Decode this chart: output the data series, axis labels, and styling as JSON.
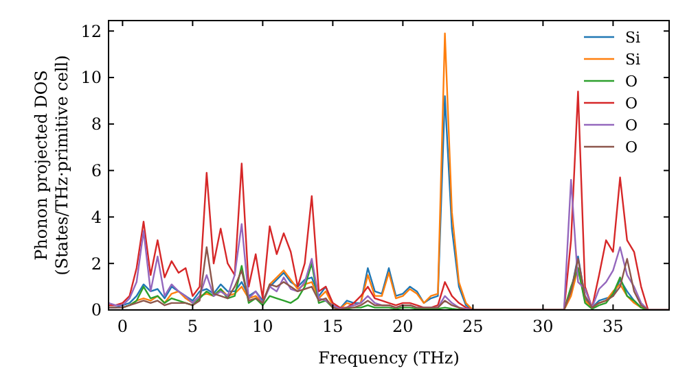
{
  "chart_data": {
    "type": "line",
    "xlabel": "Frequency (THz)",
    "ylabel": "Phonon projected DOS\n(States/THz·primitive cell)",
    "x": [
      -1,
      -0.5,
      0,
      0.5,
      1,
      1.5,
      2,
      2.5,
      3,
      3.5,
      4,
      4.5,
      5,
      5.5,
      6,
      6.5,
      7,
      7.5,
      8,
      8.5,
      9,
      9.5,
      10,
      10.5,
      11,
      11.5,
      12,
      12.5,
      13,
      13.5,
      14,
      14.5,
      15,
      15.5,
      16,
      16.5,
      17,
      17.5,
      18,
      18.5,
      19,
      19.5,
      20,
      20.5,
      21,
      21.5,
      22,
      22.5,
      23,
      23.5,
      24,
      24.5,
      25,
      26,
      28,
      30,
      31.5,
      32,
      32.5,
      33,
      33.5,
      34,
      34.5,
      35,
      35.5,
      36,
      36.5,
      37,
      37.5,
      38,
      39
    ],
    "series": [
      {
        "name": "Si",
        "color": "#1f77b4",
        "values": [
          0.1,
          0.1,
          0.2,
          0.3,
          0.6,
          1.1,
          0.8,
          0.9,
          0.5,
          1.0,
          0.8,
          0.6,
          0.4,
          0.8,
          0.9,
          0.7,
          1.1,
          0.8,
          0.8,
          1.2,
          0.6,
          0.8,
          0.4,
          1.0,
          1.3,
          1.6,
          1.2,
          1.0,
          1.3,
          1.4,
          0.6,
          1.0,
          0.2,
          0.05,
          0.4,
          0.3,
          0.3,
          1.8,
          0.8,
          0.7,
          1.8,
          0.6,
          0.7,
          1.0,
          0.8,
          0.3,
          0.5,
          0.6,
          9.2,
          3.5,
          1.0,
          0.2,
          0,
          0,
          0,
          0,
          0,
          0.8,
          2.3,
          0.5,
          0.1,
          0.4,
          0.5,
          0.6,
          1.3,
          0.8,
          0.4,
          0.1,
          null,
          null,
          null
        ]
      },
      {
        "name": "Si",
        "color": "#ff7f0e",
        "values": [
          null,
          null,
          null,
          0.2,
          0.4,
          0.5,
          0.4,
          0.6,
          0.3,
          0.7,
          0.8,
          0.5,
          0.3,
          0.6,
          0.7,
          0.6,
          0.9,
          0.6,
          0.7,
          1.0,
          0.5,
          0.6,
          0.3,
          1.1,
          1.4,
          1.7,
          1.3,
          0.9,
          1.1,
          1.2,
          0.5,
          0.8,
          0.2,
          0.05,
          0.3,
          0.2,
          0.3,
          1.5,
          0.6,
          0.6,
          1.6,
          0.5,
          0.6,
          0.9,
          0.7,
          0.3,
          0.6,
          0.7,
          11.9,
          4.2,
          1.2,
          0.3,
          0,
          0,
          0,
          0,
          0,
          0.6,
          1.8,
          0.4,
          0.1,
          0.3,
          0.4,
          0.8,
          1.1,
          0.6,
          0.3,
          0.1,
          0,
          null,
          null
        ]
      },
      {
        "name": "O",
        "color": "#2ca02c",
        "values": [
          null,
          null,
          0.1,
          0.2,
          0.4,
          1.0,
          0.5,
          0.6,
          0.3,
          0.5,
          0.4,
          0.3,
          0.2,
          0.5,
          0.8,
          0.6,
          0.9,
          0.5,
          0.6,
          1.9,
          0.3,
          0.5,
          0.2,
          0.6,
          0.5,
          0.4,
          0.3,
          0.5,
          1.0,
          2.0,
          0.3,
          0.4,
          0.1,
          0.02,
          0.05,
          0.1,
          0.1,
          0.2,
          0.1,
          0.1,
          0.1,
          0.05,
          0.1,
          0.1,
          0.05,
          0.05,
          0.05,
          0.05,
          0.1,
          0.05,
          0.02,
          0,
          0,
          0,
          0,
          0,
          0,
          1.0,
          1.8,
          0.3,
          0.05,
          0.2,
          0.3,
          0.7,
          1.4,
          0.6,
          0.4,
          0.1,
          0,
          0,
          0
        ]
      },
      {
        "name": "O",
        "color": "#d62728",
        "values": [
          0.2,
          0.2,
          0.3,
          0.6,
          1.8,
          3.8,
          1.5,
          3.0,
          1.4,
          2.1,
          1.6,
          1.8,
          0.6,
          1.0,
          5.9,
          2.0,
          3.5,
          2.0,
          1.5,
          6.3,
          1.0,
          2.4,
          0.5,
          3.6,
          2.4,
          3.3,
          2.5,
          1.0,
          2.0,
          4.9,
          0.8,
          1.0,
          0.3,
          0.1,
          0.1,
          0.3,
          0.6,
          1.0,
          0.5,
          0.4,
          0.3,
          0.2,
          0.3,
          0.3,
          0.2,
          0.1,
          0.1,
          0.2,
          1.2,
          0.6,
          0.3,
          0.1,
          0,
          0,
          0,
          0,
          0,
          3.0,
          9.4,
          1.0,
          0.1,
          1.5,
          3.0,
          2.5,
          5.7,
          3.0,
          2.5,
          1.0,
          0,
          0,
          0
        ]
      },
      {
        "name": "O",
        "color": "#9467bd",
        "values": [
          0.3,
          0.2,
          0.2,
          0.5,
          1.2,
          3.4,
          0.8,
          2.3,
          0.6,
          1.1,
          0.8,
          0.6,
          0.3,
          0.6,
          1.5,
          0.6,
          0.8,
          0.6,
          1.5,
          3.7,
          0.5,
          0.8,
          0.3,
          1.0,
          0.8,
          1.4,
          0.9,
          0.8,
          1.2,
          2.2,
          0.5,
          0.4,
          0.2,
          0.05,
          0.1,
          0.2,
          0.3,
          0.6,
          0.3,
          0.2,
          0.2,
          0.1,
          0.2,
          0.2,
          0.1,
          0.1,
          0.1,
          0.1,
          0.6,
          0.3,
          0.1,
          0.05,
          0,
          0,
          0,
          0,
          0,
          5.6,
          1.2,
          0.9,
          0.1,
          0.9,
          1.2,
          1.7,
          2.7,
          1.5,
          1.0,
          0.3,
          0,
          0,
          0
        ]
      },
      {
        "name": "O",
        "color": "#8c564b",
        "values": [
          0.1,
          0.1,
          0.1,
          0.2,
          0.3,
          0.4,
          0.3,
          0.4,
          0.2,
          0.3,
          0.3,
          0.3,
          0.2,
          0.4,
          2.7,
          0.7,
          0.6,
          0.5,
          1.0,
          1.7,
          0.4,
          0.5,
          0.3,
          1.1,
          1.0,
          1.2,
          1.0,
          0.8,
          0.9,
          1.0,
          0.4,
          0.5,
          0.1,
          0.02,
          0.1,
          0.1,
          0.2,
          0.4,
          0.2,
          0.2,
          0.2,
          0.1,
          0.2,
          0.2,
          0.1,
          0.1,
          0.1,
          0.1,
          0.4,
          0.2,
          0.1,
          0,
          0,
          0,
          0,
          0,
          0,
          0.8,
          2.2,
          0.6,
          0.1,
          0.3,
          0.4,
          0.6,
          1.0,
          2.2,
          0.8,
          0.2,
          0,
          0,
          0
        ]
      }
    ],
    "xlim": [
      -1,
      39
    ],
    "ylim": [
      0,
      12.45
    ],
    "xticks": [
      0,
      5,
      10,
      15,
      20,
      25,
      30,
      35
    ],
    "yticks": [
      0,
      2,
      4,
      6,
      8,
      10,
      12
    ],
    "legend": "top right",
    "grid": false,
    "marker": "none",
    "line_style": "solid"
  }
}
